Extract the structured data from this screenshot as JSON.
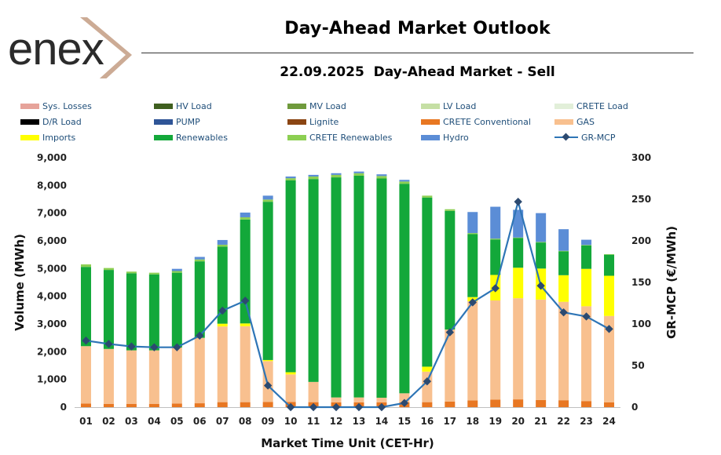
{
  "header": {
    "title": "Day-Ahead Market Outlook",
    "subtitle": "22.09.2025  Day-Ahead Market - Sell",
    "logo_text": "enex"
  },
  "colors": {
    "losses": "#e6a39a",
    "hv": "#3f5f1f",
    "mv": "#6f9a3c",
    "lv": "#c5dfa4",
    "crete_load": "#e2efd9",
    "dr": "#000000",
    "pump": "#2f5597",
    "lignite": "#8b4513",
    "crete_conv": "#e87722",
    "gas": "#f8c08f",
    "imports": "#ffff00",
    "renewables": "#13a83a",
    "crete_ren": "#8ccf52",
    "hydro": "#5b8dd6",
    "mcp": "#2e75b6",
    "mcp_marker": "#2c4a70"
  },
  "legend": [
    {
      "label": "Sys. Losses",
      "color_key": "losses"
    },
    {
      "label": "HV Load",
      "color_key": "hv"
    },
    {
      "label": "MV Load",
      "color_key": "mv"
    },
    {
      "label": "LV Load",
      "color_key": "lv"
    },
    {
      "label": "CRETE Load",
      "color_key": "crete_load"
    },
    {
      "label": "D/R Load",
      "color_key": "dr"
    },
    {
      "label": "PUMP",
      "color_key": "pump"
    },
    {
      "label": "Lignite",
      "color_key": "lignite"
    },
    {
      "label": "CRETE Conventional",
      "color_key": "crete_conv"
    },
    {
      "label": "GAS",
      "color_key": "gas"
    },
    {
      "label": "Imports",
      "color_key": "imports"
    },
    {
      "label": "Renewables",
      "color_key": "renewables"
    },
    {
      "label": "CRETE Renewables",
      "color_key": "crete_ren"
    },
    {
      "label": "Hydro",
      "color_key": "hydro"
    },
    {
      "label": "GR-MCP",
      "color_key": "mcp",
      "line": true
    }
  ],
  "chart_data": {
    "type": "bar",
    "stacked": true,
    "xlabel": "Market Time Unit (CET-Hr)",
    "ylabel": "Volume (MWh)",
    "y2label": "GR-MCP (€/MWh)",
    "ylim": [
      0,
      9000
    ],
    "y2lim": [
      0,
      300
    ],
    "yticks": [
      "0",
      "1,000",
      "2,000",
      "3,000",
      "4,000",
      "5,000",
      "6,000",
      "7,000",
      "8,000",
      "9,000"
    ],
    "y2ticks": [
      "0",
      "50",
      "100",
      "150",
      "200",
      "250",
      "300"
    ],
    "categories": [
      "01",
      "02",
      "03",
      "04",
      "05",
      "06",
      "07",
      "08",
      "09",
      "10",
      "11",
      "12",
      "13",
      "14",
      "15",
      "16",
      "17",
      "18",
      "19",
      "20",
      "21",
      "22",
      "23",
      "24"
    ],
    "series": [
      {
        "name": "CRETE Conventional",
        "color_key": "crete_conv",
        "values": [
          130,
          120,
          120,
          120,
          130,
          140,
          180,
          180,
          190,
          190,
          180,
          170,
          170,
          170,
          170,
          180,
          200,
          240,
          270,
          280,
          260,
          250,
          220,
          170
        ]
      },
      {
        "name": "GAS",
        "color_key": "gas",
        "values": [
          2070,
          1980,
          1930,
          1930,
          2020,
          2360,
          2730,
          2740,
          1470,
          990,
          730,
          180,
          180,
          170,
          330,
          1100,
          2600,
          3580,
          3580,
          3650,
          3620,
          3550,
          3420,
          3120
        ]
      },
      {
        "name": "Imports",
        "color_key": "imports",
        "values": [
          0,
          0,
          0,
          0,
          0,
          0,
          100,
          100,
          40,
          80,
          0,
          0,
          0,
          0,
          0,
          180,
          0,
          150,
          920,
          1100,
          1120,
          960,
          1350,
          1450
        ]
      },
      {
        "name": "Renewables",
        "color_key": "renewables",
        "values": [
          2860,
          2850,
          2780,
          2740,
          2700,
          2760,
          2780,
          3750,
          5710,
          6920,
          7320,
          7940,
          8000,
          7910,
          7560,
          6100,
          4280,
          2270,
          1280,
          1070,
          940,
          860,
          840,
          760
        ]
      },
      {
        "name": "CRETE Renewables",
        "color_key": "crete_ren",
        "values": [
          90,
          70,
          60,
          60,
          60,
          70,
          70,
          80,
          80,
          80,
          90,
          90,
          90,
          90,
          80,
          70,
          60,
          40,
          30,
          20,
          20,
          20,
          20,
          20
        ]
      },
      {
        "name": "Hydro",
        "color_key": "hydro",
        "values": [
          0,
          0,
          0,
          0,
          80,
          90,
          170,
          170,
          140,
          60,
          60,
          60,
          60,
          60,
          60,
          0,
          0,
          760,
          1150,
          1000,
          1040,
          780,
          190,
          0
        ]
      }
    ],
    "line": {
      "name": "GR-MCP",
      "axis": "right",
      "color_key": "mcp",
      "values": [
        80,
        76,
        73,
        72,
        72,
        86,
        116,
        128,
        26,
        0,
        0,
        0,
        0,
        0,
        5,
        31,
        90,
        126,
        143,
        247,
        146,
        114,
        109,
        94
      ]
    }
  }
}
